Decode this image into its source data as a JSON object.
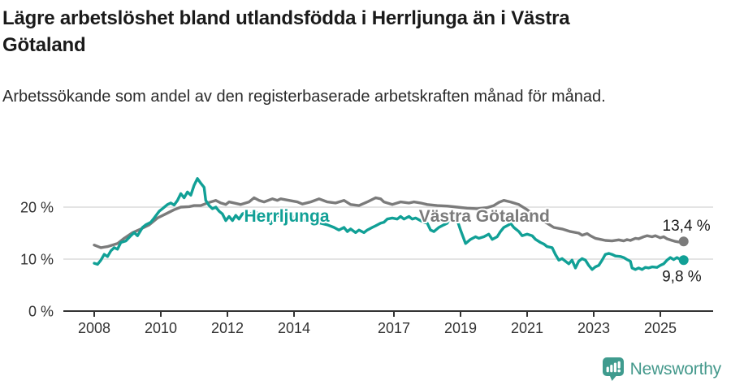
{
  "footer": {
    "brand": "Newsworthy"
  },
  "colors": {
    "herrljunga": "#11a096",
    "vastra_gotaland": "#7b7b7b",
    "grid": "#dcdcdc",
    "axis": "#333333",
    "tick_text": "#333333",
    "value_text": "#1a1a1a",
    "brand": "#45998c"
  },
  "chart_data": {
    "type": "line",
    "title": "Lägre arbetslöshet bland utlandsfödda i Herrljunga än i Västra Götaland",
    "subtitle": "Arbetssökande som andel av den registerbaserade arbetskraften månad för månad.",
    "grid": "horizontal",
    "legend_position": "inline-labels",
    "xlim": [
      2007.05,
      2026.6
    ],
    "ylim": [
      0,
      29
    ],
    "x_axis": {
      "ticks": [
        {
          "value": 2008,
          "label": "2008"
        },
        {
          "value": 2010,
          "label": "2010"
        },
        {
          "value": 2012,
          "label": "2012"
        },
        {
          "value": 2014,
          "label": "2014"
        },
        {
          "value": 2017,
          "label": "2017"
        },
        {
          "value": 2019,
          "label": "2019"
        },
        {
          "value": 2021,
          "label": "2021"
        },
        {
          "value": 2023,
          "label": "2023"
        },
        {
          "value": 2025,
          "label": "2025"
        }
      ]
    },
    "y_axis": {
      "ticks": [
        {
          "value": 0,
          "label": "0 %"
        },
        {
          "value": 10,
          "label": "10 %"
        },
        {
          "value": 20,
          "label": "20 %"
        }
      ]
    },
    "series": [
      {
        "name": "Herrljunga",
        "color": "#11a096",
        "end_label": "9,8 %",
        "end_value": 9.8,
        "end_label_offset": [
          22,
          26
        ],
        "label_pos": [
          2012.5,
          17.2
        ],
        "points": [
          [
            2008.0,
            9.2
          ],
          [
            2008.1,
            9.0
          ],
          [
            2008.2,
            9.8
          ],
          [
            2008.3,
            10.9
          ],
          [
            2008.4,
            10.5
          ],
          [
            2008.5,
            11.6
          ],
          [
            2008.6,
            12.2
          ],
          [
            2008.7,
            11.9
          ],
          [
            2008.8,
            13.2
          ],
          [
            2008.95,
            13.5
          ],
          [
            2009.1,
            14.5
          ],
          [
            2009.2,
            15.1
          ],
          [
            2009.3,
            14.5
          ],
          [
            2009.45,
            16.1
          ],
          [
            2009.55,
            16.6
          ],
          [
            2009.7,
            17.1
          ],
          [
            2009.8,
            17.9
          ],
          [
            2009.95,
            19.2
          ],
          [
            2010.05,
            19.7
          ],
          [
            2010.2,
            20.5
          ],
          [
            2010.3,
            20.8
          ],
          [
            2010.4,
            20.4
          ],
          [
            2010.5,
            21.3
          ],
          [
            2010.6,
            22.6
          ],
          [
            2010.7,
            21.8
          ],
          [
            2010.8,
            22.9
          ],
          [
            2010.9,
            22.3
          ],
          [
            2011.0,
            24.2
          ],
          [
            2011.1,
            25.5
          ],
          [
            2011.2,
            24.6
          ],
          [
            2011.3,
            23.8
          ],
          [
            2011.35,
            21.3
          ],
          [
            2011.45,
            20.3
          ],
          [
            2011.55,
            19.7
          ],
          [
            2011.65,
            20.0
          ],
          [
            2011.75,
            19.2
          ],
          [
            2011.85,
            18.7
          ],
          [
            2011.95,
            17.4
          ],
          [
            2012.05,
            18.2
          ],
          [
            2012.15,
            17.4
          ],
          [
            2012.25,
            18.4
          ],
          [
            2012.35,
            17.7
          ],
          [
            2012.45,
            18.7
          ],
          [
            2012.55,
            19.0
          ],
          [
            2012.65,
            18.4
          ],
          [
            2012.8,
            19.2
          ],
          [
            2012.95,
            18.6
          ],
          [
            2013.1,
            18.2
          ],
          [
            2013.3,
            16.8
          ],
          [
            2013.5,
            18.4
          ],
          [
            2013.7,
            18.0
          ],
          [
            2013.9,
            18.3
          ],
          [
            2014.1,
            17.8
          ],
          [
            2014.3,
            17.5
          ],
          [
            2014.55,
            17.2
          ],
          [
            2014.8,
            16.9
          ],
          [
            2015.0,
            16.6
          ],
          [
            2015.2,
            16.1
          ],
          [
            2015.35,
            15.6
          ],
          [
            2015.5,
            16.1
          ],
          [
            2015.6,
            15.3
          ],
          [
            2015.7,
            15.8
          ],
          [
            2015.85,
            15.1
          ],
          [
            2015.95,
            15.6
          ],
          [
            2016.1,
            15.1
          ],
          [
            2016.2,
            15.6
          ],
          [
            2016.35,
            16.1
          ],
          [
            2016.45,
            16.4
          ],
          [
            2016.6,
            16.9
          ],
          [
            2016.7,
            17.1
          ],
          [
            2016.8,
            17.7
          ],
          [
            2016.95,
            17.9
          ],
          [
            2017.1,
            17.7
          ],
          [
            2017.2,
            18.2
          ],
          [
            2017.3,
            17.7
          ],
          [
            2017.45,
            18.2
          ],
          [
            2017.55,
            17.7
          ],
          [
            2017.65,
            17.9
          ],
          [
            2017.8,
            17.4
          ],
          [
            2017.9,
            17.1
          ],
          [
            2018.0,
            16.9
          ],
          [
            2018.1,
            15.6
          ],
          [
            2018.2,
            15.3
          ],
          [
            2018.35,
            16.1
          ],
          [
            2018.5,
            16.6
          ],
          [
            2018.6,
            16.9
          ],
          [
            2018.75,
            18.7
          ],
          [
            2018.9,
            17.5
          ],
          [
            2019.0,
            15.6
          ],
          [
            2019.15,
            13.0
          ],
          [
            2019.3,
            13.8
          ],
          [
            2019.45,
            14.3
          ],
          [
            2019.55,
            14.0
          ],
          [
            2019.7,
            14.3
          ],
          [
            2019.85,
            14.8
          ],
          [
            2019.95,
            13.8
          ],
          [
            2020.1,
            14.3
          ],
          [
            2020.2,
            15.3
          ],
          [
            2020.3,
            16.1
          ],
          [
            2020.45,
            16.6
          ],
          [
            2020.5,
            16.9
          ],
          [
            2020.6,
            16.1
          ],
          [
            2020.75,
            15.3
          ],
          [
            2020.85,
            14.5
          ],
          [
            2021.0,
            14.8
          ],
          [
            2021.15,
            14.5
          ],
          [
            2021.25,
            13.8
          ],
          [
            2021.4,
            13.2
          ],
          [
            2021.5,
            12.9
          ],
          [
            2021.6,
            12.4
          ],
          [
            2021.75,
            12.2
          ],
          [
            2021.85,
            10.9
          ],
          [
            2021.95,
            9.8
          ],
          [
            2022.05,
            10.1
          ],
          [
            2022.15,
            9.6
          ],
          [
            2022.25,
            9.1
          ],
          [
            2022.35,
            9.8
          ],
          [
            2022.45,
            8.3
          ],
          [
            2022.55,
            9.6
          ],
          [
            2022.65,
            10.1
          ],
          [
            2022.75,
            9.8
          ],
          [
            2022.85,
            8.8
          ],
          [
            2022.95,
            8.0
          ],
          [
            2023.05,
            8.5
          ],
          [
            2023.15,
            8.8
          ],
          [
            2023.25,
            9.8
          ],
          [
            2023.35,
            10.9
          ],
          [
            2023.45,
            11.1
          ],
          [
            2023.55,
            10.9
          ],
          [
            2023.65,
            10.6
          ],
          [
            2023.8,
            10.5
          ],
          [
            2023.9,
            10.3
          ],
          [
            2024.0,
            9.9
          ],
          [
            2024.1,
            9.6
          ],
          [
            2024.15,
            8.3
          ],
          [
            2024.25,
            8.0
          ],
          [
            2024.35,
            8.3
          ],
          [
            2024.45,
            8.0
          ],
          [
            2024.55,
            8.4
          ],
          [
            2024.65,
            8.3
          ],
          [
            2024.75,
            8.5
          ],
          [
            2024.9,
            8.4
          ],
          [
            2025.0,
            8.8
          ],
          [
            2025.1,
            9.1
          ],
          [
            2025.2,
            9.8
          ],
          [
            2025.3,
            10.3
          ],
          [
            2025.4,
            9.9
          ],
          [
            2025.5,
            10.3
          ],
          [
            2025.6,
            9.9
          ],
          [
            2025.7,
            9.8
          ]
        ]
      },
      {
        "name": "Västra Götaland",
        "color": "#7b7b7b",
        "end_label": "13,4 %",
        "end_value": 13.4,
        "end_label_offset": [
          33,
          -13
        ],
        "label_pos": [
          2017.75,
          17.2
        ],
        "points": [
          [
            2008.0,
            12.7
          ],
          [
            2008.2,
            12.2
          ],
          [
            2008.4,
            12.4
          ],
          [
            2008.7,
            13.0
          ],
          [
            2008.9,
            14.0
          ],
          [
            2009.15,
            15.1
          ],
          [
            2009.4,
            15.8
          ],
          [
            2009.65,
            16.6
          ],
          [
            2009.9,
            17.9
          ],
          [
            2010.15,
            18.7
          ],
          [
            2010.4,
            19.5
          ],
          [
            2010.6,
            20.0
          ],
          [
            2010.85,
            20.1
          ],
          [
            2011.0,
            20.3
          ],
          [
            2011.2,
            20.3
          ],
          [
            2011.4,
            20.8
          ],
          [
            2011.65,
            21.3
          ],
          [
            2011.8,
            20.8
          ],
          [
            2011.95,
            20.5
          ],
          [
            2012.05,
            21.0
          ],
          [
            2012.2,
            20.8
          ],
          [
            2012.4,
            20.5
          ],
          [
            2012.65,
            21.0
          ],
          [
            2012.8,
            21.8
          ],
          [
            2012.95,
            21.3
          ],
          [
            2013.1,
            21.0
          ],
          [
            2013.35,
            21.6
          ],
          [
            2013.5,
            21.3
          ],
          [
            2013.6,
            21.6
          ],
          [
            2013.85,
            21.3
          ],
          [
            2014.1,
            21.0
          ],
          [
            2014.25,
            20.6
          ],
          [
            2014.5,
            21.0
          ],
          [
            2014.75,
            21.6
          ],
          [
            2015.0,
            21.0
          ],
          [
            2015.25,
            20.8
          ],
          [
            2015.5,
            21.3
          ],
          [
            2015.7,
            20.5
          ],
          [
            2015.95,
            20.3
          ],
          [
            2016.2,
            21.0
          ],
          [
            2016.45,
            21.8
          ],
          [
            2016.6,
            21.6
          ],
          [
            2016.7,
            21.0
          ],
          [
            2016.95,
            20.5
          ],
          [
            2017.2,
            21.0
          ],
          [
            2017.45,
            20.8
          ],
          [
            2017.6,
            21.0
          ],
          [
            2017.8,
            20.8
          ],
          [
            2018.0,
            20.5
          ],
          [
            2018.3,
            20.3
          ],
          [
            2018.6,
            20.2
          ],
          [
            2018.9,
            20.0
          ],
          [
            2019.2,
            19.8
          ],
          [
            2019.5,
            19.7
          ],
          [
            2019.8,
            19.9
          ],
          [
            2020.0,
            20.3
          ],
          [
            2020.15,
            20.9
          ],
          [
            2020.3,
            21.3
          ],
          [
            2020.5,
            21.0
          ],
          [
            2020.75,
            20.5
          ],
          [
            2021.0,
            19.5
          ],
          [
            2021.2,
            18.5
          ],
          [
            2021.4,
            17.6
          ],
          [
            2021.6,
            16.9
          ],
          [
            2021.8,
            16.1
          ],
          [
            2022.05,
            15.8
          ],
          [
            2022.3,
            15.3
          ],
          [
            2022.55,
            15.0
          ],
          [
            2022.65,
            14.6
          ],
          [
            2022.8,
            14.9
          ],
          [
            2022.9,
            14.5
          ],
          [
            2023.05,
            14.0
          ],
          [
            2023.2,
            13.8
          ],
          [
            2023.35,
            13.6
          ],
          [
            2023.55,
            13.5
          ],
          [
            2023.75,
            13.7
          ],
          [
            2023.9,
            13.5
          ],
          [
            2024.0,
            13.75
          ],
          [
            2024.1,
            13.6
          ],
          [
            2024.25,
            14.0
          ],
          [
            2024.35,
            13.9
          ],
          [
            2024.5,
            14.3
          ],
          [
            2024.6,
            14.5
          ],
          [
            2024.75,
            14.3
          ],
          [
            2024.85,
            14.5
          ],
          [
            2025.0,
            14.1
          ],
          [
            2025.1,
            14.3
          ],
          [
            2025.2,
            13.9
          ],
          [
            2025.35,
            13.6
          ],
          [
            2025.45,
            13.4
          ],
          [
            2025.55,
            13.3
          ],
          [
            2025.7,
            13.4
          ]
        ]
      }
    ]
  }
}
